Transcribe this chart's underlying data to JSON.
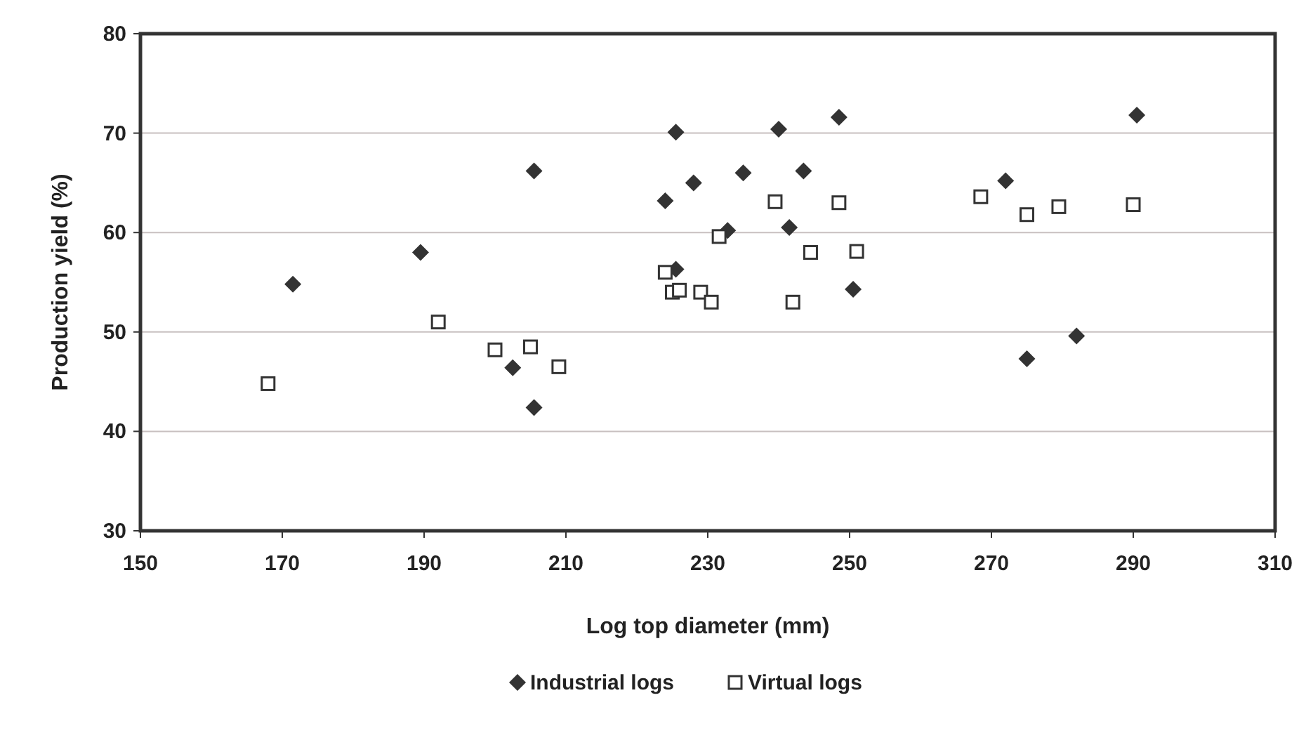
{
  "chart_data": {
    "type": "scatter",
    "xlabel": "Log top diameter (mm)",
    "ylabel": "Production yield (%)",
    "xlim": [
      150,
      310
    ],
    "xticks": [
      150,
      170,
      190,
      210,
      230,
      250,
      270,
      290,
      310
    ],
    "ylim": [
      30,
      80
    ],
    "yticks": [
      30,
      40,
      50,
      60,
      70,
      80
    ],
    "grid": "y",
    "legend": "bottom",
    "series": [
      {
        "name": "Industrial logs",
        "color": "#333333",
        "marker": "diamond",
        "x": [
          171.5,
          189.5,
          205.5,
          202.5,
          205.5,
          224,
          225.5,
          225.5,
          228,
          232.8,
          235,
          240,
          241.5,
          243.5,
          248.5,
          250.5,
          272,
          275,
          282,
          290.5
        ],
        "values": [
          54.8,
          58,
          66.2,
          46.4,
          42.4,
          63.2,
          70.1,
          56.3,
          65,
          60.2,
          66,
          70.4,
          60.5,
          66.2,
          71.6,
          54.3,
          65.2,
          47.3,
          49.6,
          71.8
        ]
      },
      {
        "name": "Virtual logs",
        "color": "#333333",
        "marker": "square",
        "x": [
          168,
          192,
          200,
          205,
          209,
          224,
          225,
          226,
          229,
          230.5,
          231.6,
          239.5,
          242,
          244.5,
          248.5,
          251,
          268.5,
          275,
          279.5,
          290
        ],
        "values": [
          44.8,
          51,
          48.2,
          48.5,
          46.5,
          56,
          54,
          54.2,
          54,
          53,
          59.6,
          63.1,
          53,
          58,
          63,
          58.1,
          63.6,
          61.8,
          62.6,
          62.8
        ]
      }
    ]
  }
}
